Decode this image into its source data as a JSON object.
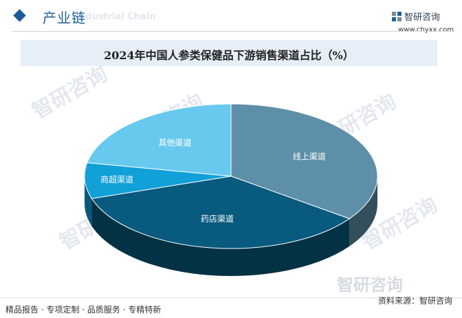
{
  "header": {
    "section_title": "产业链",
    "section_title_en": "Industrial Chain",
    "brand_name": "智研咨询",
    "brand_url": "www.chyxx.com"
  },
  "chart_data": {
    "type": "pie",
    "title": "2024年中国人参类保健品下游销售渠道占比（%）",
    "slices": [
      {
        "label": "线上渠道",
        "value": 35,
        "color": "#5e8fa8"
      },
      {
        "label": "药店渠道",
        "value": 35,
        "color": "#085a7e"
      },
      {
        "label": "商超渠道",
        "value": 8,
        "color": "#12a0d8"
      },
      {
        "label": "其他渠道",
        "value": 22,
        "color": "#68c9ef"
      }
    ],
    "start_angle_deg": -90,
    "view": "3d",
    "legend": "none"
  },
  "watermark": {
    "text": "智研咨询"
  },
  "footer": {
    "tagline": "精品报告 · 专项定制 · 品质服务 · 专精特新",
    "source": "资料来源：智研咨询"
  }
}
